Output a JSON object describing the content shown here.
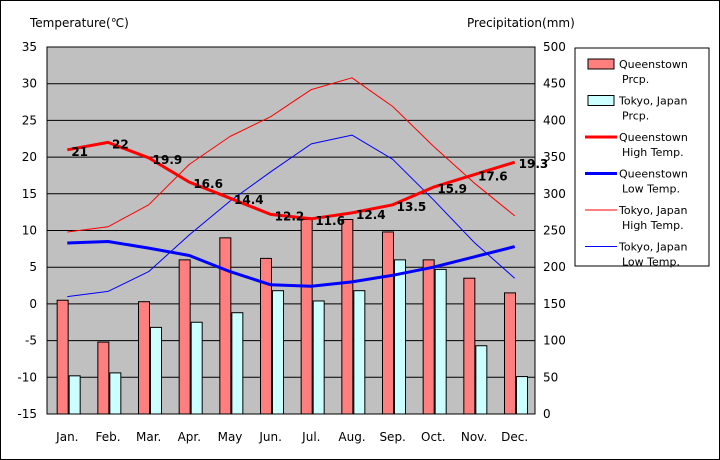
{
  "chart_data": {
    "type": "bar",
    "left_axis_title": "Temperature(℃)",
    "right_axis_title": "Precipitation(mm)",
    "categories": [
      "Jan.",
      "Feb.",
      "Mar.",
      "Apr.",
      "May",
      "Jun.",
      "Jul.",
      "Aug.",
      "Sep.",
      "Oct.",
      "Nov.",
      "Dec."
    ],
    "left_ticks": [
      "35",
      "30",
      "25",
      "20",
      "15",
      "10",
      "5",
      "0",
      "-5",
      "-10",
      "-15"
    ],
    "right_ticks": [
      "500",
      "450",
      "400",
      "350",
      "300",
      "250",
      "200",
      "150",
      "100",
      "50",
      "0"
    ],
    "left_ylim": [
      -15,
      35
    ],
    "right_ylim": [
      0,
      500
    ],
    "grid": true,
    "legend_position": "right",
    "series": [
      {
        "name": "Queenstown Prcp.",
        "kind": "bar",
        "axis": "right",
        "color": "#FF7F7F",
        "values": [
          155,
          98,
          153,
          210,
          240,
          212,
          265,
          265,
          248,
          210,
          185,
          165
        ]
      },
      {
        "name": "Tokyo, Japan Prcp.",
        "kind": "bar",
        "axis": "right",
        "color": "#CCFFFF",
        "values": [
          52,
          56,
          118,
          125,
          138,
          168,
          154,
          168,
          210,
          197,
          93,
          51
        ]
      },
      {
        "name": "Queenstown High Temp.",
        "kind": "line",
        "axis": "left",
        "color": "#FF0000",
        "width": "thick",
        "values": [
          21,
          22,
          19.9,
          16.6,
          14.4,
          12.2,
          11.6,
          12.4,
          13.5,
          15.9,
          17.6,
          19.3
        ],
        "labels": [
          "21",
          "22",
          "19.9",
          "16.6",
          "14.4",
          "12.2",
          "11.6",
          "12.4",
          "13.5",
          "15.9",
          "17.6",
          "19.3"
        ]
      },
      {
        "name": "Queenstown Low Temp.",
        "kind": "line",
        "axis": "left",
        "color": "#0000FF",
        "width": "thick",
        "values": [
          8.3,
          8.5,
          7.6,
          6.6,
          4.4,
          2.6,
          2.4,
          3.0,
          3.9,
          5.0,
          6.4,
          7.8
        ]
      },
      {
        "name": "Tokyo, Japan High Temp.",
        "kind": "line",
        "axis": "left",
        "color": "#FF0000",
        "width": "thin",
        "values": [
          9.8,
          10.5,
          13.5,
          19.0,
          22.8,
          25.5,
          29.2,
          30.8,
          26.9,
          21.5,
          16.5,
          12.0
        ]
      },
      {
        "name": "Tokyo, Japan Low Temp.",
        "kind": "line",
        "axis": "left",
        "color": "#0000FF",
        "width": "thin",
        "values": [
          1.0,
          1.7,
          4.4,
          9.4,
          14.0,
          18.0,
          21.8,
          23.0,
          19.7,
          14.2,
          8.4,
          3.5
        ]
      }
    ]
  },
  "legend": {
    "items": [
      {
        "line1": "Queenstown",
        "line2": "Prcp."
      },
      {
        "line1": "Tokyo, Japan",
        "line2": "Prcp."
      },
      {
        "line1": "Queenstown",
        "line2": "High Temp."
      },
      {
        "line1": "Queenstown",
        "line2": "Low Temp."
      },
      {
        "line1": "Tokyo, Japan",
        "line2": "High Temp."
      },
      {
        "line1": "Tokyo, Japan",
        "line2": "Low Temp."
      }
    ]
  }
}
